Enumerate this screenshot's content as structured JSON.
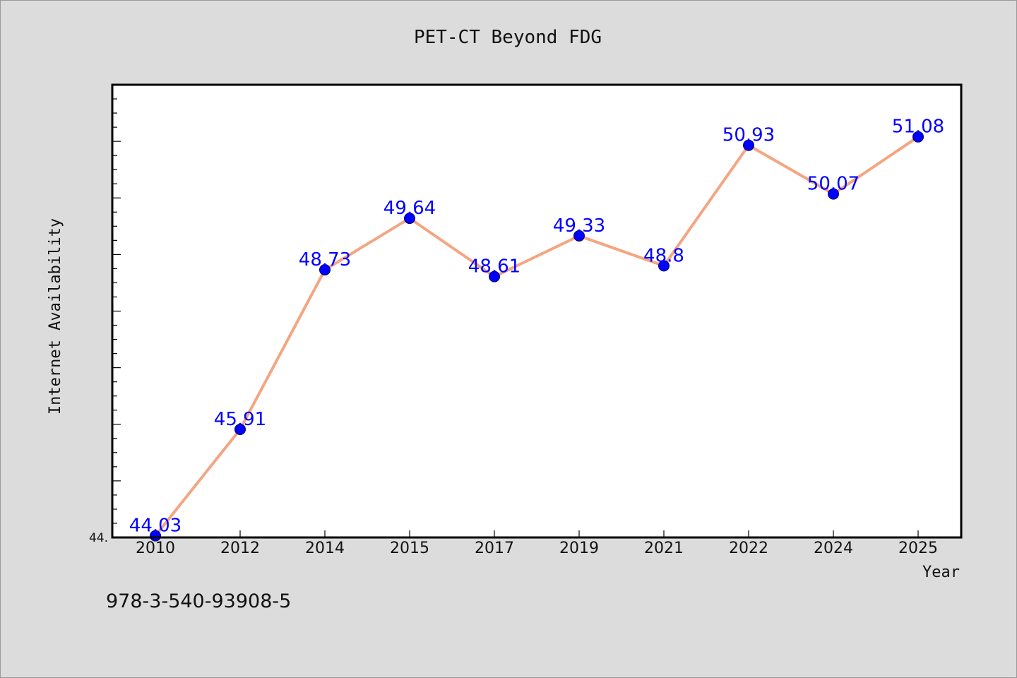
{
  "footer_text": "978-3-540-93908-5",
  "chart_data": {
    "type": "line",
    "title": "PET-CT Beyond FDG",
    "xlabel": "Year",
    "ylabel": "Internet Availability",
    "categories": [
      "2010",
      "2012",
      "2014",
      "2015",
      "2017",
      "2019",
      "2021",
      "2022",
      "2024",
      "2025"
    ],
    "series": [
      {
        "values": [
          44.03,
          45.91,
          48.73,
          49.64,
          48.61,
          49.33,
          48.8,
          50.93,
          50.07,
          51.08
        ]
      }
    ],
    "data_labels": [
      "44.03",
      "45.91",
      "48.73",
      "49.64",
      "48.61",
      "49.33",
      "48.8",
      "50.93",
      "50.07",
      "51.08"
    ],
    "ytick_labels": [
      "44."
    ],
    "ylim": [
      44.0,
      52.0
    ],
    "grid": false,
    "legend": "none",
    "colors": {
      "line": "#f4a582",
      "marker": "#0000ff",
      "data_label": "#0000ff",
      "background": "#dcdcdc",
      "plot_background": "#ffffff"
    }
  }
}
